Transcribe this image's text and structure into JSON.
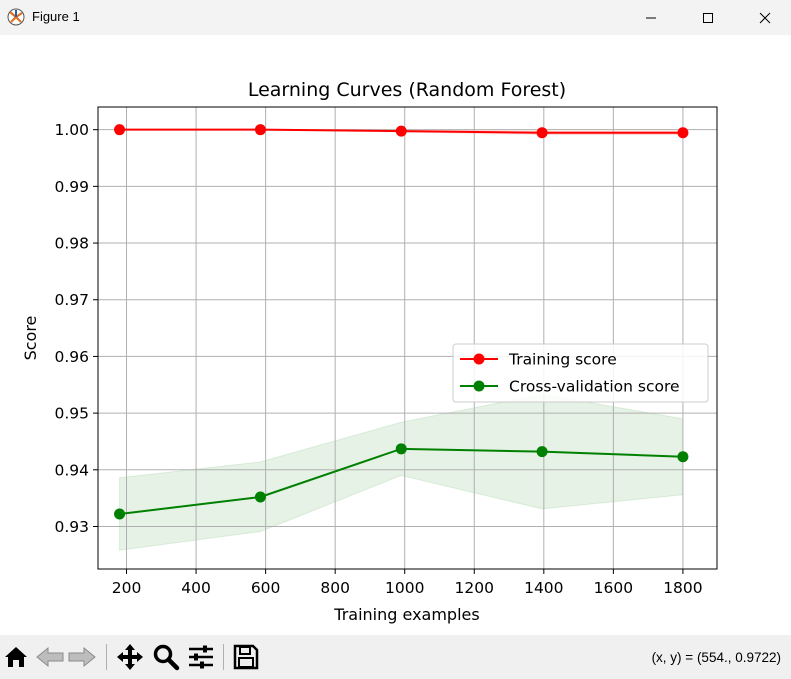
{
  "window": {
    "title": "Figure 1",
    "app_icon": "matplotlib-logo-icon",
    "controls": [
      "minimize-icon",
      "maximize-icon",
      "close-icon"
    ]
  },
  "toolbar": {
    "buttons": [
      "home-icon",
      "back-icon",
      "forward-icon",
      "pan-icon",
      "zoom-icon",
      "configure-subplots-icon",
      "save-icon"
    ],
    "coords_text": "(x, y) = (554., 0.9722)"
  },
  "chart_data": {
    "type": "line",
    "title": "Learning Curves (Random Forest)",
    "xlabel": "Training examples",
    "ylabel": "Score",
    "xlim": [
      118,
      1898
    ],
    "ylim": [
      0.9225,
      1.004
    ],
    "xticks": [
      200,
      400,
      600,
      800,
      1000,
      1200,
      1400,
      1600,
      1800
    ],
    "xtick_labels": [
      "200",
      "400",
      "600",
      "800",
      "1000",
      "1200",
      "1400",
      "1600",
      "1800"
    ],
    "yticks": [
      0.93,
      0.94,
      0.95,
      0.96,
      0.97,
      0.98,
      0.99,
      1.0
    ],
    "ytick_labels": [
      "0.93",
      "0.94",
      "0.95",
      "0.96",
      "0.97",
      "0.98",
      "0.99",
      "1.00"
    ],
    "grid": true,
    "legend_position": "center-right",
    "x": [
      180,
      585,
      990,
      1395,
      1800
    ],
    "series": [
      {
        "name": "Training score",
        "color": "#ff0000",
        "values": [
          1.0,
          1.0,
          0.99975,
          0.99945,
          0.99945
        ],
        "band_lower": [
          1.0,
          1.0,
          0.9996,
          0.99915,
          0.99915
        ],
        "band_upper": [
          1.0,
          1.0,
          0.99995,
          0.99975,
          0.99975
        ]
      },
      {
        "name": "Cross-validation score",
        "color": "#008000",
        "values": [
          0.9322,
          0.9352,
          0.9437,
          0.9432,
          0.9423
        ],
        "band_lower": [
          0.9258,
          0.9291,
          0.939,
          0.9331,
          0.9356
        ],
        "band_upper": [
          0.9386,
          0.9414,
          0.9484,
          0.9533,
          0.949
        ]
      }
    ]
  }
}
